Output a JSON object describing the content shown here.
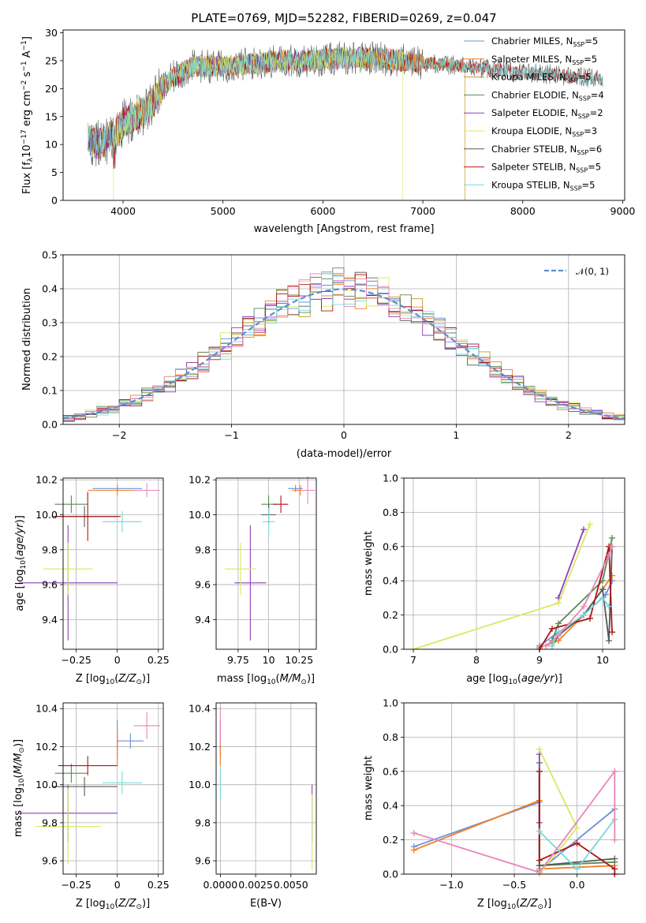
{
  "colors": [
    "#6f8fd8",
    "#f07f24",
    "#c8961e",
    "#5a8a55",
    "#8e3fb8",
    "#d4ea62",
    "#585858",
    "#b01414",
    "#78d8d8",
    "#e687b8"
  ],
  "chart_data": [
    {
      "id": "spectrum",
      "type": "line",
      "title": "PLATE=0769, MJD=52282, FIBERID=0269, z=0.047",
      "xlabel": "wavelength [Angstrom, rest frame]",
      "ylabel": "Flux [f_λ 10^-17 erg cm^-2 s^-1 A^-1]",
      "xlim": [
        3400,
        9020
      ],
      "ylim": [
        0,
        30.5
      ],
      "xticks": [
        4000,
        5000,
        6000,
        7000,
        8000,
        9000
      ],
      "yticks": [
        0,
        5,
        10,
        15,
        20,
        25,
        30
      ],
      "grid": false,
      "legend_position": "right",
      "series": [
        {
          "name": "Chabrier MILES, N_SSP=5",
          "xrange": [
            3650,
            7420
          ]
        },
        {
          "name": "Salpeter MILES, N_SSP=5",
          "xrange": [
            3650,
            7420
          ]
        },
        {
          "name": "Kroupa MILES, N_SSP=5",
          "xrange": [
            3650,
            7420
          ]
        },
        {
          "name": "Chabrier ELODIE, N_SSP=4",
          "xrange": [
            3650,
            6800
          ]
        },
        {
          "name": "Salpeter ELODIE, N_SSP=2",
          "xrange": [
            3650,
            6800
          ]
        },
        {
          "name": "Kroupa ELODIE, N_SSP=3",
          "xrange": [
            3900,
            6800
          ]
        },
        {
          "name": "Chabrier STELIB, N_SSP=6",
          "xrange": [
            3650,
            8800
          ]
        },
        {
          "name": "Salpeter STELIB, N_SSP=5",
          "xrange": [
            3650,
            8800
          ]
        },
        {
          "name": "Kroupa STELIB, N_SSP=5",
          "xrange": [
            3650,
            8800
          ]
        }
      ],
      "continuum_x": [
        3650,
        3750,
        3850,
        3950,
        4050,
        4150,
        4250,
        4350,
        4500,
        4700,
        5000,
        5300,
        5600,
        5900,
        6200,
        6500,
        6800,
        7100,
        7400,
        7700,
        8000,
        8300,
        8600,
        8800
      ],
      "continuum_y": [
        11,
        10,
        11,
        13,
        14.5,
        15.5,
        16.5,
        19,
        22,
        24,
        24,
        24.5,
        25,
        25,
        25.5,
        25.5,
        25,
        24.5,
        24,
        23.5,
        23,
        22.5,
        22,
        21.5
      ]
    },
    {
      "id": "residuals",
      "type": "histogram",
      "xlabel": "(data-model)/error",
      "ylabel": "Normed distribution",
      "xlim": [
        -2.5,
        2.5
      ],
      "ylim": [
        0,
        0.5
      ],
      "xticks": [
        -2,
        -1,
        0,
        1,
        2
      ],
      "yticks": [
        0.0,
        0.1,
        0.2,
        0.3,
        0.4,
        0.5
      ],
      "grid": true,
      "bin_width": 0.1,
      "legend_position": "top-right",
      "reference_curve": {
        "name": "𝒩(0, 1)",
        "mean": 0,
        "sigma": 1
      }
    },
    {
      "id": "age-vs-Z",
      "type": "scatter",
      "xlabel": "Z [log10(Z/Z⊙)]",
      "ylabel": "age [log10(age/yr)]",
      "xlim": [
        -0.33,
        0.28
      ],
      "ylim": [
        9.23,
        10.21
      ],
      "xticks": [
        -0.25,
        0.0,
        0.25
      ],
      "yticks": [
        9.4,
        9.6,
        9.8,
        10.0,
        10.2
      ],
      "points": [
        {
          "x": 0.0,
          "y": 10.15,
          "xerr": 0.15,
          "yerr": 0.02,
          "c": 0
        },
        {
          "x": 0.0,
          "y": 10.14,
          "xerr": 0.18,
          "yerr": 0.03,
          "c": 1
        },
        {
          "x": -0.28,
          "y": 10.06,
          "xerr": 0.1,
          "yerr": 0.05,
          "c": 3
        },
        {
          "x": -0.3,
          "y": 9.61,
          "xerr": 0.3,
          "yerr": 0.33,
          "c": 4
        },
        {
          "x": -0.3,
          "y": 9.69,
          "xerr": 0.15,
          "yerr": 0.15,
          "c": 5
        },
        {
          "x": -0.2,
          "y": 9.99,
          "xerr": 0.2,
          "yerr": 0.06,
          "c": 6
        },
        {
          "x": -0.18,
          "y": 9.99,
          "xerr": 0.2,
          "yerr": 0.14,
          "c": 7
        },
        {
          "x": 0.03,
          "y": 9.96,
          "xerr": 0.12,
          "yerr": 0.06,
          "c": 8
        },
        {
          "x": 0.18,
          "y": 10.14,
          "xerr": 0.08,
          "yerr": 0.04,
          "c": 9
        }
      ]
    },
    {
      "id": "age-vs-mass",
      "type": "scatter",
      "xlabel": "mass [log10(M/M⊙)]",
      "ylabel": "",
      "xlim": [
        9.57,
        10.39
      ],
      "ylim": [
        9.23,
        10.21
      ],
      "xticks": [
        9.75,
        10.0,
        10.25
      ],
      "yticks": [
        9.4,
        9.6,
        9.8,
        10.0,
        10.2
      ],
      "points": [
        {
          "x": 10.22,
          "y": 10.15,
          "xerr": 0.06,
          "yerr": 0.02,
          "c": 0
        },
        {
          "x": 10.26,
          "y": 10.14,
          "xerr": 0.07,
          "yerr": 0.03,
          "c": 1
        },
        {
          "x": 10.0,
          "y": 10.06,
          "xerr": 0.06,
          "yerr": 0.05,
          "c": 3
        },
        {
          "x": 9.85,
          "y": 9.61,
          "xerr": 0.13,
          "yerr": 0.33,
          "c": 4
        },
        {
          "x": 9.77,
          "y": 9.69,
          "xerr": 0.13,
          "yerr": 0.15,
          "c": 5
        },
        {
          "x": 10.0,
          "y": 10.0,
          "xerr": 0.06,
          "yerr": 0.06,
          "c": 6
        },
        {
          "x": 10.1,
          "y": 10.06,
          "xerr": 0.06,
          "yerr": 0.05,
          "c": 7
        },
        {
          "x": 10.0,
          "y": 9.96,
          "xerr": 0.05,
          "yerr": 0.08,
          "c": 8
        },
        {
          "x": 10.32,
          "y": 10.14,
          "xerr": 0.06,
          "yerr": 0.08,
          "c": 9
        }
      ]
    },
    {
      "id": "mass-weight-vs-age",
      "type": "line",
      "xlabel": "age [log10(age/yr)]",
      "ylabel": "mass weight",
      "xlim": [
        6.85,
        10.35
      ],
      "ylim": [
        0,
        1.0
      ],
      "xticks": [
        7,
        8,
        9,
        10
      ],
      "yticks": [
        0.0,
        0.2,
        0.4,
        0.6,
        0.8,
        1.0
      ],
      "grid": true,
      "series": [
        {
          "c": 0,
          "x": [
            9.0,
            9.3,
            9.7,
            10.05,
            10.15
          ],
          "y": [
            0.02,
            0.1,
            0.2,
            0.32,
            0.4
          ]
        },
        {
          "c": 1,
          "x": [
            9.0,
            9.3,
            9.7,
            10.0,
            10.15
          ],
          "y": [
            0.01,
            0.05,
            0.2,
            0.35,
            0.43
          ]
        },
        {
          "c": 3,
          "x": [
            9.2,
            9.3,
            10.0,
            10.15
          ],
          "y": [
            0.05,
            0.15,
            0.4,
            0.65
          ]
        },
        {
          "c": 4,
          "x": [
            9.3,
            9.7
          ],
          "y": [
            0.3,
            0.7
          ]
        },
        {
          "c": 5,
          "x": [
            7.0,
            9.3,
            9.8
          ],
          "y": [
            0.0,
            0.27,
            0.73
          ]
        },
        {
          "c": 6,
          "x": [
            9.2,
            9.3,
            9.7,
            10.0,
            10.1,
            10.15
          ],
          "y": [
            0.02,
            0.08,
            0.2,
            0.35,
            0.05,
            0.6
          ]
        },
        {
          "c": 7,
          "x": [
            9.0,
            9.2,
            9.8,
            10.1,
            10.15
          ],
          "y": [
            0.0,
            0.12,
            0.18,
            0.6,
            0.1
          ]
        },
        {
          "c": 8,
          "x": [
            9.2,
            9.3,
            9.7,
            10.0,
            10.1
          ],
          "y": [
            0.02,
            0.1,
            0.2,
            0.3,
            0.25
          ]
        },
        {
          "c": 9,
          "x": [
            9.1,
            9.3,
            9.7,
            10.1,
            10.15
          ],
          "y": [
            0.02,
            0.08,
            0.25,
            0.55,
            0.6
          ]
        }
      ]
    },
    {
      "id": "mass-vs-Z",
      "type": "scatter",
      "xlabel": "Z [log10(Z/Z⊙)]",
      "ylabel": "mass [log10(M/M⊙)]",
      "xlim": [
        -0.33,
        0.28
      ],
      "ylim": [
        9.53,
        10.43
      ],
      "xticks": [
        -0.25,
        0.0,
        0.25
      ],
      "yticks": [
        9.6,
        9.8,
        10.0,
        10.2,
        10.4
      ],
      "points": [
        {
          "x": 0.0,
          "y": 10.24,
          "xerr": 0.0,
          "yerr": 0.1,
          "c": 0
        },
        {
          "x": 0.08,
          "y": 10.23,
          "xerr": 0.08,
          "yerr": 0.04,
          "c": 0
        },
        {
          "x": 0.0,
          "y": 10.19,
          "xerr": 0.0,
          "yerr": 0.09,
          "c": 1
        },
        {
          "x": -0.28,
          "y": 10.06,
          "xerr": 0.1,
          "yerr": 0.05,
          "c": 3
        },
        {
          "x": -0.3,
          "y": 9.85,
          "xerr": 0.3,
          "yerr": 0.15,
          "c": 4
        },
        {
          "x": -0.3,
          "y": 9.78,
          "xerr": 0.2,
          "yerr": 0.2,
          "c": 5
        },
        {
          "x": -0.2,
          "y": 9.99,
          "xerr": 0.2,
          "yerr": 0.05,
          "c": 6
        },
        {
          "x": -0.18,
          "y": 10.1,
          "xerr": 0.18,
          "yerr": 0.05,
          "c": 7
        },
        {
          "x": 0.03,
          "y": 10.01,
          "xerr": 0.12,
          "yerr": 0.06,
          "c": 8
        },
        {
          "x": 0.18,
          "y": 10.31,
          "xerr": 0.08,
          "yerr": 0.07,
          "c": 9
        }
      ]
    },
    {
      "id": "mass-vs-ebv",
      "type": "scatter",
      "xlabel": "E(B-V)",
      "ylabel": "",
      "xlim": [
        -0.0003,
        0.0068
      ],
      "ylim": [
        9.53,
        10.43
      ],
      "xticks": [
        0.0,
        0.0025,
        0.005
      ],
      "xtick_labels": [
        "0.0000",
        "0.0025",
        "0.0050"
      ],
      "yticks": [
        9.6,
        9.8,
        10.0,
        10.2,
        10.4
      ],
      "points": [
        {
          "x": 0.0,
          "y": 10.24,
          "xerr": 0.0,
          "yerr": 0.1,
          "c": 0
        },
        {
          "x": 0.0,
          "y": 10.19,
          "xerr": 0.0,
          "yerr": 0.09,
          "c": 1
        },
        {
          "x": 0.0,
          "y": 10.31,
          "xerr": 0.0,
          "yerr": 0.1,
          "c": 9
        },
        {
          "x": 0.0,
          "y": 10.0,
          "xerr": 0.0,
          "yerr": 0.08,
          "c": 8
        },
        {
          "x": 0.0065,
          "y": 9.85,
          "xerr": 0.0,
          "yerr": 0.15,
          "c": 4
        },
        {
          "x": 0.0065,
          "y": 9.75,
          "xerr": 0.0,
          "yerr": 0.2,
          "c": 5
        }
      ]
    },
    {
      "id": "mass-weight-vs-Z",
      "type": "line",
      "xlabel": "Z [log10(Z/Z⊙)]",
      "ylabel": "mass weight",
      "xlim": [
        -1.38,
        0.38
      ],
      "ylim": [
        0,
        1.0
      ],
      "xticks": [
        -1.0,
        -0.5,
        0.0
      ],
      "yticks": [
        0.0,
        0.2,
        0.4,
        0.6,
        0.8,
        1.0
      ],
      "grid": true,
      "series": [
        {
          "c": 0,
          "x": [
            -1.3,
            -0.3,
            -0.3,
            0.3
          ],
          "y": [
            0.16,
            0.42,
            0.02,
            0.38
          ]
        },
        {
          "c": 1,
          "x": [
            -1.3,
            -0.3,
            -0.3,
            0.3
          ],
          "y": [
            0.14,
            0.43,
            0.03,
            0.05
          ]
        },
        {
          "c": 3,
          "x": [
            -0.3,
            -0.3,
            0.3
          ],
          "y": [
            0.65,
            0.05,
            0.07
          ]
        },
        {
          "c": 4,
          "x": [
            -0.3,
            -0.3
          ],
          "y": [
            0.7,
            0.3
          ]
        },
        {
          "c": 5,
          "x": [
            -0.3,
            0.0,
            -0.3
          ],
          "y": [
            0.73,
            0.27,
            0.0
          ]
        },
        {
          "c": 6,
          "x": [
            -0.3,
            -0.3,
            0.3
          ],
          "y": [
            0.6,
            0.05,
            0.09
          ]
        },
        {
          "c": 7,
          "x": [
            -0.3,
            -0.3,
            0.0,
            0.3,
            0.3
          ],
          "y": [
            0.6,
            0.08,
            0.18,
            0.03,
            0.0
          ]
        },
        {
          "c": 8,
          "x": [
            -0.3,
            0.0,
            0.3
          ],
          "y": [
            0.25,
            0.03,
            0.32
          ]
        },
        {
          "c": 9,
          "x": [
            -1.3,
            -0.3,
            0.3,
            0.3
          ],
          "y": [
            0.24,
            0.01,
            0.6,
            0.2
          ]
        }
      ]
    }
  ]
}
